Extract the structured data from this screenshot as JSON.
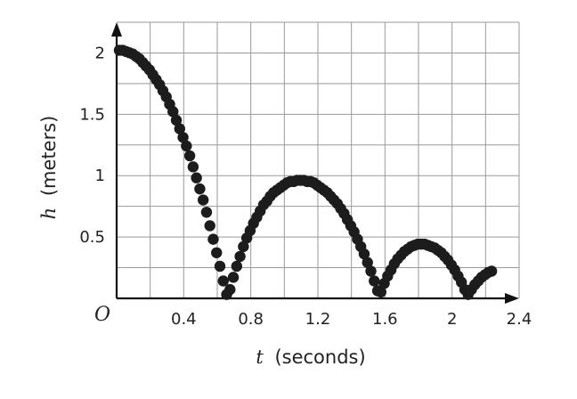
{
  "chart_data": {
    "type": "scatter",
    "title": "",
    "xlabel": {
      "variable": "t",
      "unit": "(seconds)"
    },
    "ylabel": {
      "variable": "h",
      "unit": "(meters)"
    },
    "origin_label": "O",
    "xlim": [
      0,
      2.4
    ],
    "ylim": [
      0,
      2.25
    ],
    "grid": true,
    "x_ticks": [
      {
        "value": 0.4,
        "label": "0.4"
      },
      {
        "value": 0.8,
        "label": "0.8"
      },
      {
        "value": 1.2,
        "label": "1.2"
      },
      {
        "value": 1.6,
        "label": "1.6"
      },
      {
        "value": 2.0,
        "label": "2"
      },
      {
        "value": 2.4,
        "label": "2.4"
      }
    ],
    "y_ticks": [
      {
        "value": 0.5,
        "label": "0.5"
      },
      {
        "value": 1.0,
        "label": "1"
      },
      {
        "value": 1.5,
        "label": "1.5"
      },
      {
        "value": 2.0,
        "label": "2"
      }
    ],
    "x_gridlines": [
      0.2,
      0.4,
      0.6,
      0.8,
      1.0,
      1.2,
      1.4,
      1.6,
      1.8,
      2.0,
      2.2,
      2.4
    ],
    "y_gridlines": [
      0.25,
      0.5,
      0.75,
      1.0,
      1.25,
      1.5,
      1.75,
      2.0,
      2.25
    ],
    "series": [
      {
        "color": "#1c1c1c",
        "points": [
          [
            0.0,
            2.0
          ],
          [
            0.02,
            2.0
          ],
          [
            0.04,
            1.99
          ],
          [
            0.06,
            1.98
          ],
          [
            0.08,
            1.97
          ],
          [
            0.1,
            1.95
          ],
          [
            0.12,
            1.93
          ],
          [
            0.14,
            1.9
          ],
          [
            0.16,
            1.87
          ],
          [
            0.18,
            1.84
          ],
          [
            0.2,
            1.8
          ],
          [
            0.22,
            1.76
          ],
          [
            0.24,
            1.72
          ],
          [
            0.26,
            1.67
          ],
          [
            0.28,
            1.62
          ],
          [
            0.3,
            1.56
          ],
          [
            0.32,
            1.5
          ],
          [
            0.34,
            1.43
          ],
          [
            0.36,
            1.36
          ],
          [
            0.38,
            1.29
          ],
          [
            0.4,
            1.22
          ],
          [
            0.42,
            1.14
          ],
          [
            0.44,
            1.05
          ],
          [
            0.46,
            0.96
          ],
          [
            0.48,
            0.87
          ],
          [
            0.5,
            0.78
          ],
          [
            0.52,
            0.68
          ],
          [
            0.54,
            0.57
          ],
          [
            0.56,
            0.46
          ],
          [
            0.58,
            0.35
          ],
          [
            0.6,
            0.24
          ],
          [
            0.62,
            0.12
          ],
          [
            0.64,
            0.01
          ],
          [
            0.66,
            0.05
          ],
          [
            0.68,
            0.15
          ],
          [
            0.7,
            0.24
          ],
          [
            0.72,
            0.32
          ],
          [
            0.74,
            0.4
          ],
          [
            0.76,
            0.47
          ],
          [
            0.78,
            0.53
          ],
          [
            0.8,
            0.59
          ],
          [
            0.82,
            0.64
          ],
          [
            0.84,
            0.69
          ],
          [
            0.86,
            0.74
          ],
          [
            0.88,
            0.77
          ],
          [
            0.9,
            0.81
          ],
          [
            0.92,
            0.84
          ],
          [
            0.94,
            0.86
          ],
          [
            0.96,
            0.88
          ],
          [
            0.98,
            0.9
          ],
          [
            1.0,
            0.92
          ],
          [
            1.02,
            0.93
          ],
          [
            1.04,
            0.93
          ],
          [
            1.06,
            0.94
          ],
          [
            1.08,
            0.94
          ],
          [
            1.1,
            0.94
          ],
          [
            1.12,
            0.93
          ],
          [
            1.14,
            0.93
          ],
          [
            1.16,
            0.92
          ],
          [
            1.18,
            0.9
          ],
          [
            1.2,
            0.88
          ],
          [
            1.22,
            0.86
          ],
          [
            1.24,
            0.84
          ],
          [
            1.26,
            0.81
          ],
          [
            1.28,
            0.78
          ],
          [
            1.3,
            0.75
          ],
          [
            1.32,
            0.71
          ],
          [
            1.34,
            0.67
          ],
          [
            1.36,
            0.62
          ],
          [
            1.38,
            0.57
          ],
          [
            1.4,
            0.52
          ],
          [
            1.42,
            0.46
          ],
          [
            1.44,
            0.4
          ],
          [
            1.46,
            0.34
          ],
          [
            1.48,
            0.27
          ],
          [
            1.5,
            0.2
          ],
          [
            1.52,
            0.12
          ],
          [
            1.54,
            0.04
          ],
          [
            1.56,
            0.03
          ],
          [
            1.58,
            0.1
          ],
          [
            1.6,
            0.16
          ],
          [
            1.62,
            0.21
          ],
          [
            1.64,
            0.26
          ],
          [
            1.66,
            0.3
          ],
          [
            1.68,
            0.33
          ],
          [
            1.7,
            0.36
          ],
          [
            1.72,
            0.38
          ],
          [
            1.74,
            0.4
          ],
          [
            1.76,
            0.41
          ],
          [
            1.78,
            0.42
          ],
          [
            1.8,
            0.42
          ],
          [
            1.82,
            0.42
          ],
          [
            1.84,
            0.41
          ],
          [
            1.86,
            0.4
          ],
          [
            1.88,
            0.39
          ],
          [
            1.9,
            0.37
          ],
          [
            1.92,
            0.35
          ],
          [
            1.94,
            0.32
          ],
          [
            1.96,
            0.29
          ],
          [
            1.98,
            0.25
          ],
          [
            2.0,
            0.21
          ],
          [
            2.02,
            0.16
          ],
          [
            2.04,
            0.11
          ],
          [
            2.06,
            0.05
          ],
          [
            2.08,
            0.01
          ],
          [
            2.1,
            0.05
          ],
          [
            2.12,
            0.09
          ],
          [
            2.14,
            0.12
          ],
          [
            2.16,
            0.15
          ],
          [
            2.18,
            0.17
          ],
          [
            2.2,
            0.19
          ],
          [
            2.22,
            0.2
          ]
        ]
      }
    ]
  }
}
